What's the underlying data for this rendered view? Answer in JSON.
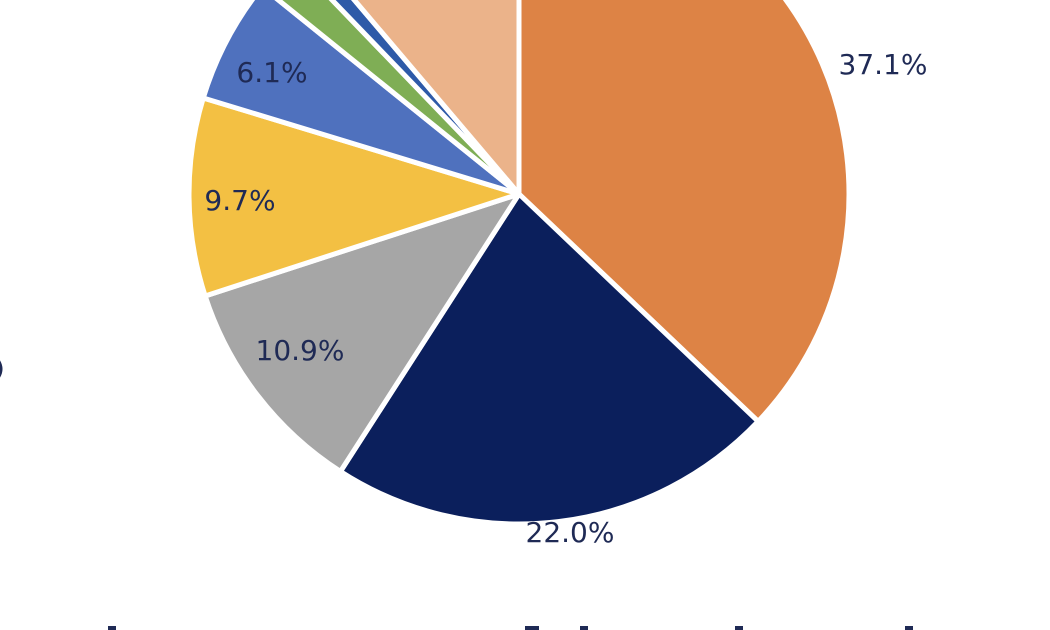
{
  "chart_data": {
    "type": "pie",
    "start_angle_deg": 0,
    "direction": "clockwise",
    "slices": [
      {
        "value": 37.1,
        "label": "37.1%",
        "color": "#DD8345",
        "show_label": true
      },
      {
        "value": 22.0,
        "label": "22.0%",
        "color": "#0B1F5C",
        "show_label": true
      },
      {
        "value": 10.9,
        "label": "10.9%",
        "color": "#A6A6A6",
        "show_label": true
      },
      {
        "value": 9.7,
        "label": "9.7%",
        "color": "#F3C043",
        "show_label": true
      },
      {
        "value": 6.1,
        "label": "6.1%",
        "color": "#4F71BE",
        "show_label": true
      },
      {
        "value": 2.0,
        "label": "",
        "color": "#7FAE55",
        "show_label": false
      },
      {
        "value": 1.0,
        "label": "",
        "color": "#2E5AA8",
        "show_label": false
      },
      {
        "value": 11.2,
        "label": "",
        "color": "#EBB38A",
        "show_label": false
      }
    ]
  }
}
